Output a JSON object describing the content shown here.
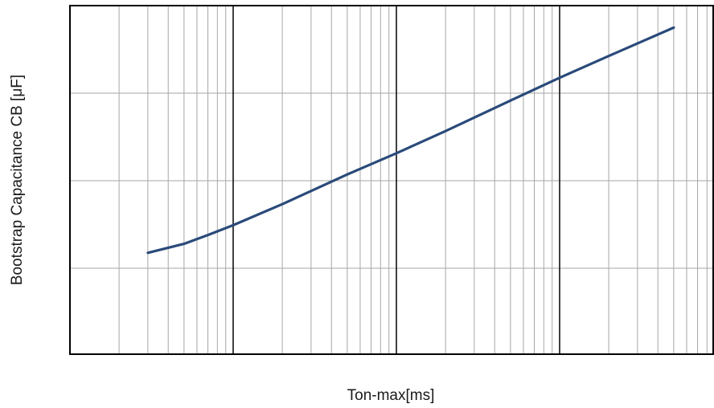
{
  "chart_data": {
    "type": "line",
    "title": "",
    "xlabel": "Ton-max[ms]",
    "ylabel": "Bootstrap Capacitance CB [μF]",
    "x_scale": "log",
    "y_scale": "log",
    "grid": true,
    "legend": "none",
    "tick_labels_visible": false,
    "x_decades_visible": 4,
    "y_decades_visible": 4,
    "series": [
      {
        "color": "#2a4a7a",
        "points": [
          [
            0.3,
            0.15
          ],
          [
            0.5,
            0.19
          ],
          [
            0.7,
            0.24
          ],
          [
            1.0,
            0.31
          ],
          [
            2.0,
            0.54
          ],
          [
            5.0,
            1.18
          ],
          [
            10.0,
            2.06
          ],
          [
            20.0,
            3.69
          ],
          [
            50.0,
            8.24
          ],
          [
            100.0,
            15.0
          ],
          [
            200.0,
            26.6
          ],
          [
            500.0,
            56.0
          ]
        ]
      }
    ],
    "colors": {
      "line": "#2a4a7a",
      "grid_minor": "#a6a6a6",
      "grid_major": "#111111"
    }
  }
}
